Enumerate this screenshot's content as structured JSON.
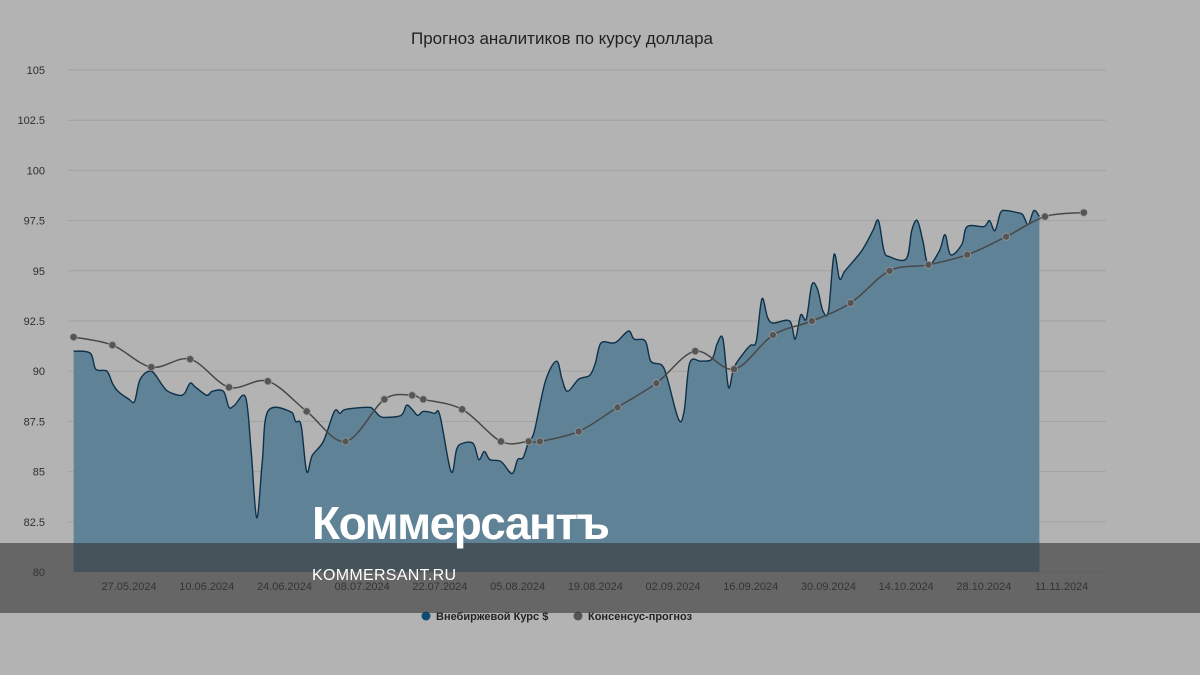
{
  "chart_data": {
    "type": "area",
    "title": "Прогноз аналитиков по курсу доллара",
    "xlabel": "",
    "ylabel": "",
    "ylim": [
      80,
      105
    ],
    "yticks": [
      "80",
      "82.5",
      "85",
      "87.5",
      "90",
      "92.5",
      "95",
      "97.5",
      "100",
      "102.5",
      "105"
    ],
    "x_range": [
      "2024-05-16",
      "2024-11-19"
    ],
    "xticks": [
      {
        "date": "2024-05-27",
        "label": "27.05.2024"
      },
      {
        "date": "2024-06-10",
        "label": "10.06.2024"
      },
      {
        "date": "2024-06-24",
        "label": "24.06.2024"
      },
      {
        "date": "2024-07-08",
        "label": "08.07.2024"
      },
      {
        "date": "2024-07-22",
        "label": "22.07.2024"
      },
      {
        "date": "2024-08-05",
        "label": "05.08.2024"
      },
      {
        "date": "2024-08-19",
        "label": "19.08.2024"
      },
      {
        "date": "2024-09-02",
        "label": "02.09.2024"
      },
      {
        "date": "2024-09-16",
        "label": "16.09.2024"
      },
      {
        "date": "2024-09-30",
        "label": "30.09.2024"
      },
      {
        "date": "2024-10-14",
        "label": "14.10.2024"
      },
      {
        "date": "2024-10-28",
        "label": "28.10.2024"
      },
      {
        "date": "2024-11-11",
        "label": "11.11.2024"
      }
    ],
    "grid": true,
    "legend_position": "bottom-center",
    "series": [
      {
        "name": "Внебиржевой Курс $",
        "type": "area",
        "color": "#5b7f96",
        "line_color": "#0d3149",
        "marker_color": "#0f4c75",
        "points": [
          [
            "2024-05-17",
            91.0
          ],
          [
            "2024-05-20",
            90.9
          ],
          [
            "2024-05-21",
            90.1
          ],
          [
            "2024-05-23",
            90.0
          ],
          [
            "2024-05-24",
            89.4
          ],
          [
            "2024-05-25",
            89.0
          ],
          [
            "2024-05-27",
            88.6
          ],
          [
            "2024-05-28",
            88.5
          ],
          [
            "2024-05-29",
            89.6
          ],
          [
            "2024-05-31",
            90.0
          ],
          [
            "2024-06-02",
            89.3
          ],
          [
            "2024-06-03",
            89.0
          ],
          [
            "2024-06-05",
            88.8
          ],
          [
            "2024-06-06",
            88.9
          ],
          [
            "2024-06-07",
            89.4
          ],
          [
            "2024-06-08",
            89.2
          ],
          [
            "2024-06-10",
            88.8
          ],
          [
            "2024-06-11",
            89.0
          ],
          [
            "2024-06-13",
            89.0
          ],
          [
            "2024-06-14",
            88.2
          ],
          [
            "2024-06-15",
            88.3
          ],
          [
            "2024-06-17",
            88.7
          ],
          [
            "2024-06-18",
            86.0
          ],
          [
            "2024-06-19",
            82.7
          ],
          [
            "2024-06-20",
            85.5
          ],
          [
            "2024-06-21",
            88.0
          ],
          [
            "2024-06-25",
            88.0
          ],
          [
            "2024-06-26",
            87.5
          ],
          [
            "2024-06-27",
            87.3
          ],
          [
            "2024-06-28",
            85.0
          ],
          [
            "2024-06-29",
            85.8
          ],
          [
            "2024-07-01",
            86.5
          ],
          [
            "2024-07-03",
            88.0
          ],
          [
            "2024-07-04",
            87.9
          ],
          [
            "2024-07-05",
            88.1
          ],
          [
            "2024-07-09",
            88.2
          ],
          [
            "2024-07-10",
            88.1
          ],
          [
            "2024-07-11",
            87.8
          ],
          [
            "2024-07-12",
            87.7
          ],
          [
            "2024-07-15",
            87.8
          ],
          [
            "2024-07-16",
            88.3
          ],
          [
            "2024-07-17",
            88.1
          ],
          [
            "2024-07-18",
            87.8
          ],
          [
            "2024-07-19",
            88.0
          ],
          [
            "2024-07-21",
            87.9
          ],
          [
            "2024-07-22",
            87.8
          ],
          [
            "2024-07-24",
            85.0
          ],
          [
            "2024-07-25",
            86.1
          ],
          [
            "2024-07-26",
            86.4
          ],
          [
            "2024-07-28",
            86.4
          ],
          [
            "2024-07-29",
            85.6
          ],
          [
            "2024-07-30",
            86.0
          ],
          [
            "2024-07-31",
            85.6
          ],
          [
            "2024-08-02",
            85.5
          ],
          [
            "2024-08-04",
            84.9
          ],
          [
            "2024-08-05",
            85.6
          ],
          [
            "2024-08-06",
            85.7
          ],
          [
            "2024-08-07",
            86.5
          ],
          [
            "2024-08-08",
            87.0
          ],
          [
            "2024-08-10",
            89.5
          ],
          [
            "2024-08-12",
            90.5
          ],
          [
            "2024-08-13",
            89.6
          ],
          [
            "2024-08-14",
            89.0
          ],
          [
            "2024-08-16",
            89.6
          ],
          [
            "2024-08-18",
            89.8
          ],
          [
            "2024-08-19",
            90.4
          ],
          [
            "2024-08-20",
            91.4
          ],
          [
            "2024-08-22",
            91.4
          ],
          [
            "2024-08-23",
            91.5
          ],
          [
            "2024-08-25",
            92.0
          ],
          [
            "2024-08-26",
            91.6
          ],
          [
            "2024-08-28",
            91.5
          ],
          [
            "2024-08-29",
            90.5
          ],
          [
            "2024-08-31",
            90.3
          ],
          [
            "2024-09-01",
            89.6
          ],
          [
            "2024-09-03",
            87.6
          ],
          [
            "2024-09-04",
            88.0
          ],
          [
            "2024-09-05",
            90.4
          ],
          [
            "2024-09-07",
            90.5
          ],
          [
            "2024-09-09",
            90.6
          ],
          [
            "2024-09-10",
            91.4
          ],
          [
            "2024-09-11",
            91.6
          ],
          [
            "2024-09-12",
            89.2
          ],
          [
            "2024-09-13",
            90.2
          ],
          [
            "2024-09-15",
            91.0
          ],
          [
            "2024-09-16",
            91.3
          ],
          [
            "2024-09-17",
            91.5
          ],
          [
            "2024-09-18",
            93.6
          ],
          [
            "2024-09-19",
            92.7
          ],
          [
            "2024-09-20",
            92.4
          ],
          [
            "2024-09-23",
            92.5
          ],
          [
            "2024-09-24",
            91.6
          ],
          [
            "2024-09-25",
            92.8
          ],
          [
            "2024-09-26",
            92.6
          ],
          [
            "2024-09-27",
            94.3
          ],
          [
            "2024-09-28",
            94.1
          ],
          [
            "2024-09-29",
            93.0
          ],
          [
            "2024-09-30",
            93.0
          ],
          [
            "2024-10-01",
            95.8
          ],
          [
            "2024-10-02",
            94.6
          ],
          [
            "2024-10-03",
            95.0
          ],
          [
            "2024-10-06",
            96.0
          ],
          [
            "2024-10-08",
            97.0
          ],
          [
            "2024-10-09",
            97.5
          ],
          [
            "2024-10-10",
            96.0
          ],
          [
            "2024-10-11",
            95.7
          ],
          [
            "2024-10-14",
            95.6
          ],
          [
            "2024-10-15",
            97.0
          ],
          [
            "2024-10-16",
            97.5
          ],
          [
            "2024-10-17",
            96.5
          ],
          [
            "2024-10-18",
            95.3
          ],
          [
            "2024-10-20",
            96.0
          ],
          [
            "2024-10-21",
            96.8
          ],
          [
            "2024-10-22",
            95.8
          ],
          [
            "2024-10-24",
            96.3
          ],
          [
            "2024-10-25",
            97.2
          ],
          [
            "2024-10-28",
            97.2
          ],
          [
            "2024-10-29",
            97.5
          ],
          [
            "2024-10-30",
            97.0
          ],
          [
            "2024-10-31",
            97.9
          ],
          [
            "2024-11-01",
            98.0
          ],
          [
            "2024-11-03",
            97.9
          ],
          [
            "2024-11-04",
            97.8
          ],
          [
            "2024-11-05",
            97.3
          ],
          [
            "2024-11-06",
            98.0
          ],
          [
            "2024-11-07",
            97.7
          ]
        ]
      },
      {
        "name": "Консенсус-прогноз",
        "type": "line",
        "color": "#484848",
        "marker_color": "#555555",
        "points": [
          [
            "2024-05-17",
            91.7
          ],
          [
            "2024-05-24",
            91.3
          ],
          [
            "2024-05-31",
            90.2
          ],
          [
            "2024-06-07",
            90.6
          ],
          [
            "2024-06-14",
            89.2
          ],
          [
            "2024-06-21",
            89.5
          ],
          [
            "2024-06-28",
            88.0
          ],
          [
            "2024-07-05",
            86.5
          ],
          [
            "2024-07-12",
            88.6
          ],
          [
            "2024-07-17",
            88.8
          ],
          [
            "2024-07-19",
            88.6
          ],
          [
            "2024-07-26",
            88.1
          ],
          [
            "2024-08-02",
            86.5
          ],
          [
            "2024-08-07",
            86.5
          ],
          [
            "2024-08-09",
            86.5
          ],
          [
            "2024-08-16",
            87.0
          ],
          [
            "2024-08-23",
            88.2
          ],
          [
            "2024-08-30",
            89.4
          ],
          [
            "2024-09-06",
            91.0
          ],
          [
            "2024-09-13",
            90.1
          ],
          [
            "2024-09-20",
            91.8
          ],
          [
            "2024-09-27",
            92.5
          ],
          [
            "2024-10-04",
            93.4
          ],
          [
            "2024-10-11",
            95.0
          ],
          [
            "2024-10-18",
            95.3
          ],
          [
            "2024-10-25",
            95.8
          ],
          [
            "2024-11-01",
            96.7
          ],
          [
            "2024-11-08",
            97.7
          ],
          [
            "2024-11-15",
            97.9
          ]
        ]
      }
    ]
  },
  "watermark": {
    "brand": "Коммерсантъ",
    "url": "KOMMERSANT.RU"
  }
}
